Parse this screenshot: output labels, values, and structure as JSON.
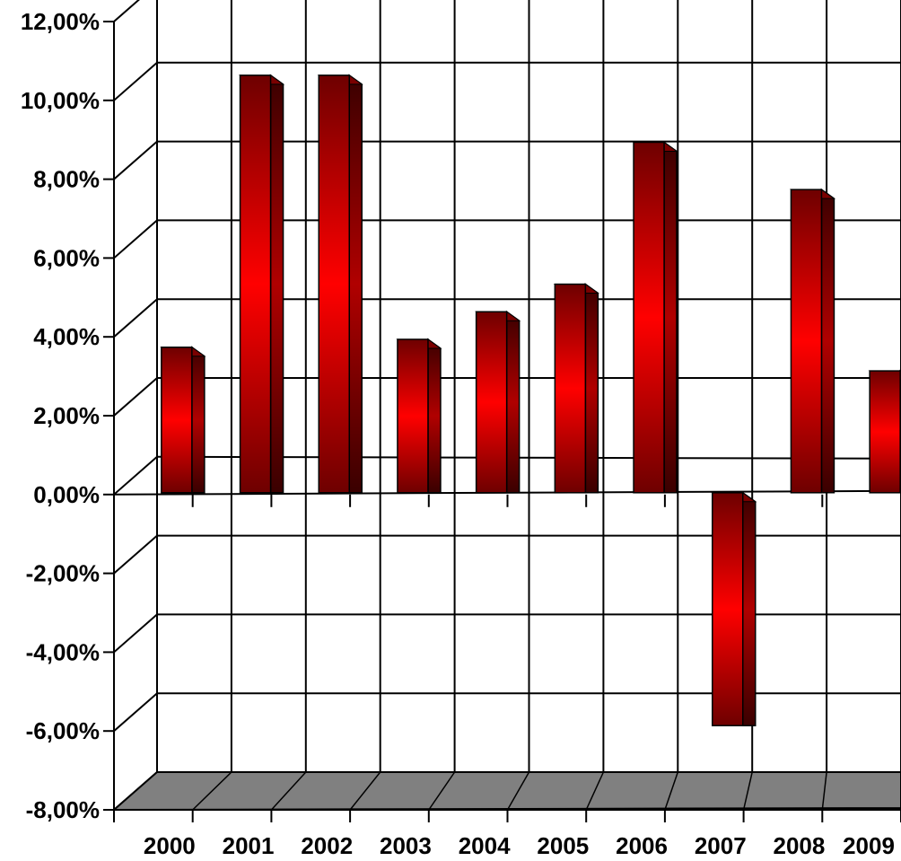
{
  "chart_data": {
    "type": "bar",
    "title": "",
    "xlabel": "",
    "ylabel": "",
    "categories": [
      "2000",
      "2001",
      "2002",
      "2003",
      "2004",
      "2005",
      "2006",
      "2007",
      "2008",
      "2009"
    ],
    "values": [
      3.6,
      10.5,
      10.5,
      3.8,
      4.5,
      5.2,
      8.8,
      -6.0,
      7.6,
      3.0
    ],
    "ylim": [
      -8,
      12
    ],
    "yticks": [
      12,
      10,
      8,
      6,
      4,
      2,
      0,
      -2,
      -4,
      -6,
      -8
    ],
    "ytick_labels": [
      "12,00%",
      "10,00%",
      "8,00%",
      "6,00%",
      "4,00%",
      "2,00%",
      "0,00%",
      "-2,00%",
      "-4,00%",
      "-6,00%",
      "-8,00%"
    ],
    "grid": true,
    "legend": "none",
    "style": "3d",
    "colors": {
      "bar_front_center": "#ff0000",
      "bar_front_edge": "#6e0000",
      "bar_side": "#4a0000",
      "bar_top": "#8a0000",
      "floor": "#808080",
      "grid": "#000000",
      "wall": "#ffffff"
    }
  }
}
